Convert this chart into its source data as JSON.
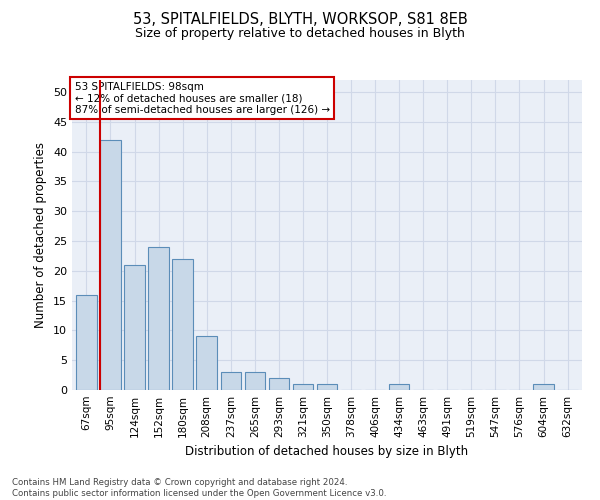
{
  "title1": "53, SPITALFIELDS, BLYTH, WORKSOP, S81 8EB",
  "title2": "Size of property relative to detached houses in Blyth",
  "xlabel": "Distribution of detached houses by size in Blyth",
  "ylabel": "Number of detached properties",
  "categories": [
    "67sqm",
    "95sqm",
    "124sqm",
    "152sqm",
    "180sqm",
    "208sqm",
    "237sqm",
    "265sqm",
    "293sqm",
    "321sqm",
    "350sqm",
    "378sqm",
    "406sqm",
    "434sqm",
    "463sqm",
    "491sqm",
    "519sqm",
    "547sqm",
    "576sqm",
    "604sqm",
    "632sqm"
  ],
  "values": [
    16,
    42,
    21,
    24,
    22,
    9,
    3,
    3,
    2,
    1,
    1,
    0,
    0,
    1,
    0,
    0,
    0,
    0,
    0,
    1,
    0
  ],
  "bar_color": "#c8d8e8",
  "bar_edge_color": "#5b8db8",
  "annotation_text": "53 SPITALFIELDS: 98sqm\n← 12% of detached houses are smaller (18)\n87% of semi-detached houses are larger (126) →",
  "annotation_box_color": "#ffffff",
  "annotation_box_edge_color": "#cc0000",
  "vline_color": "#cc0000",
  "vline_x_index": 1,
  "bar_width": 0.85,
  "ylim": [
    0,
    52
  ],
  "yticks": [
    0,
    5,
    10,
    15,
    20,
    25,
    30,
    35,
    40,
    45,
    50
  ],
  "grid_color": "#d0d8e8",
  "bg_color": "#eaeff7",
  "footnote": "Contains HM Land Registry data © Crown copyright and database right 2024.\nContains public sector information licensed under the Open Government Licence v3.0."
}
